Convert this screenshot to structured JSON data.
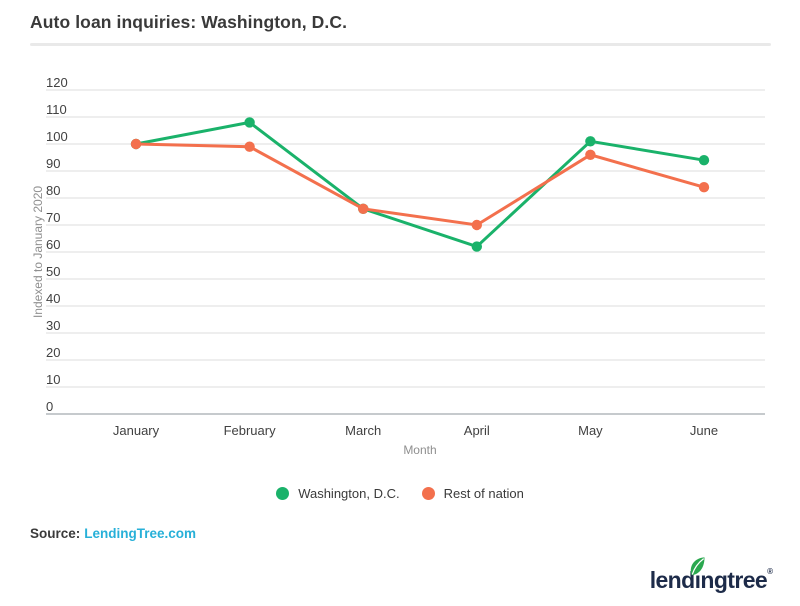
{
  "header": {
    "title": "Auto loan inquiries: Washington, D.C."
  },
  "chart_data": {
    "type": "line",
    "categories": [
      "January",
      "February",
      "March",
      "April",
      "May",
      "June"
    ],
    "series": [
      {
        "name": "Washington, D.C.",
        "color": "#1ab26a",
        "values": [
          100,
          108,
          76,
          62,
          101,
          94
        ]
      },
      {
        "name": "Rest of nation",
        "color": "#f3704d",
        "values": [
          100,
          99,
          76,
          70,
          96,
          84
        ]
      }
    ],
    "xlabel": "Month",
    "ylabel": "Indexed to January 2020",
    "ylim": [
      0,
      120
    ],
    "ytick_step": 10,
    "grid": true,
    "legend_position": "bottom",
    "marker": "circle",
    "grid_color": "#e8e8e8",
    "axis_line_color": "#c6cacd"
  },
  "footer": {
    "source_label": "Source:",
    "source_link_text": "LendingTree.com",
    "source_link_color": "#27b0d8"
  },
  "logo": {
    "prefix": "lend",
    "stem": "ı",
    "suffix": "ngtree",
    "registered": "®",
    "leaf_color": "#2aa84f",
    "text_color": "#1d2b49"
  }
}
